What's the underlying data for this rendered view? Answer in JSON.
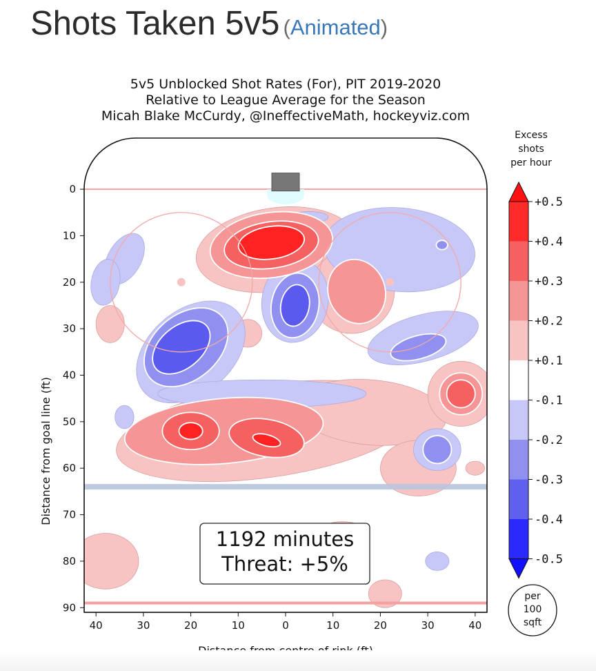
{
  "page": {
    "heading": "Shots Taken 5v5",
    "link_text": "Animated"
  },
  "chart_data": {
    "type": "heatmap",
    "title_lines": [
      "5v5 Unblocked Shot Rates (For), PIT 2019-2020",
      "Relative to League Average for the Season",
      "Micah Blake McCurdy, @IneffectiveMath, hockeyviz.com"
    ],
    "xlabel": "Distance from centre of rink (ft)",
    "ylabel": "Distance from goal line (ft)",
    "xlim": [
      -42.5,
      42.5
    ],
    "ylim": [
      -11,
      91
    ],
    "x_ticks": [
      -40,
      -30,
      -20,
      -10,
      0,
      10,
      20,
      30,
      40
    ],
    "x_tick_labels": [
      "40",
      "30",
      "20",
      "10",
      "0",
      "10",
      "20",
      "30",
      "40"
    ],
    "y_ticks": [
      0,
      10,
      20,
      30,
      40,
      50,
      60,
      70,
      80,
      90
    ],
    "y_tick_labels": [
      "0",
      "10",
      "20",
      "30",
      "40",
      "50",
      "60",
      "70",
      "80",
      "90"
    ],
    "colorbar": {
      "title_lines": [
        "Excess",
        "shots",
        "per hour"
      ],
      "bands": [
        {
          "label": "",
          "color": "#ff1111"
        },
        {
          "label": "+0.5",
          "color": "#ff2b2b"
        },
        {
          "label": "+0.4",
          "color": "#f56060"
        },
        {
          "label": "+0.3",
          "color": "#f59595"
        },
        {
          "label": "+0.2",
          "color": "#f8c3c3"
        },
        {
          "label": "+0.1",
          "color": "#ffffff"
        },
        {
          "label": "-0.1",
          "color": "#c8c8f8"
        },
        {
          "label": "-0.2",
          "color": "#9090f0"
        },
        {
          "label": "-0.3",
          "color": "#6060ee"
        },
        {
          "label": "-0.4",
          "color": "#2a2aff"
        },
        {
          "label": "-0.5",
          "color": "#1010ff"
        }
      ]
    },
    "annotation_lines": [
      "1192 minutes",
      "Threat: +5%"
    ],
    "unit_badge_lines": [
      "per",
      "100",
      "sqft"
    ],
    "regions": [
      {
        "level": 1,
        "cx": -2,
        "cy": 13,
        "rx": 17,
        "ry": 9,
        "rot": -8
      },
      {
        "level": 2,
        "cx": -3,
        "cy": 12,
        "rx": 13,
        "ry": 7,
        "rot": -8
      },
      {
        "level": 3,
        "cx": -3,
        "cy": 12,
        "rx": 10,
        "ry": 5,
        "rot": -8
      },
      {
        "level": 4,
        "cx": -3,
        "cy": 11.5,
        "rx": 7,
        "ry": 3.5,
        "rot": -8
      },
      {
        "level": 1,
        "cx": 14,
        "cy": 22,
        "rx": 9,
        "ry": 9,
        "rot": -20
      },
      {
        "level": 2,
        "cx": 15,
        "cy": 22,
        "rx": 6,
        "ry": 7,
        "rot": -20
      },
      {
        "level": 1,
        "cx": -4,
        "cy": 52,
        "rx": 32,
        "ry": 10,
        "rot": -8
      },
      {
        "level": 1,
        "cx": 18,
        "cy": 48,
        "rx": 16,
        "ry": 7,
        "rot": 5
      },
      {
        "level": 1,
        "cx": 28,
        "cy": 60,
        "rx": 8,
        "ry": 6,
        "rot": 0
      },
      {
        "level": 2,
        "cx": -13,
        "cy": 52,
        "rx": 21,
        "ry": 7,
        "rot": -5
      },
      {
        "level": 3,
        "cx": -20,
        "cy": 52,
        "rx": 6,
        "ry": 4,
        "rot": 0
      },
      {
        "level": 4,
        "cx": -20,
        "cy": 52,
        "rx": 2.5,
        "ry": 1.8,
        "rot": 0
      },
      {
        "level": 3,
        "cx": -4,
        "cy": 53.5,
        "rx": 8,
        "ry": 4,
        "rot": 10
      },
      {
        "level": 4,
        "cx": -4,
        "cy": 54,
        "rx": 3,
        "ry": 1.2,
        "rot": 15
      },
      {
        "level": 1,
        "cx": 37,
        "cy": 44,
        "rx": 7,
        "ry": 7,
        "rot": 0
      },
      {
        "level": 2,
        "cx": 37,
        "cy": 44,
        "rx": 4.5,
        "ry": 4.5,
        "rot": 0
      },
      {
        "level": 3,
        "cx": 37,
        "cy": 44,
        "rx": 3,
        "ry": 3,
        "rot": 0
      },
      {
        "level": 1,
        "cx": -38,
        "cy": 80,
        "rx": 7,
        "ry": 6,
        "rot": 0
      },
      {
        "level": 1,
        "cx": 21,
        "cy": 87,
        "rx": 3.5,
        "ry": 3,
        "rot": 0
      },
      {
        "level": 1,
        "cx": -37,
        "cy": 29,
        "rx": 3,
        "ry": 4,
        "rot": 0
      },
      {
        "level": 1,
        "cx": -8,
        "cy": 31,
        "rx": 3,
        "ry": 3,
        "rot": 0
      },
      {
        "level": 1,
        "cx": 40,
        "cy": 60,
        "rx": 2,
        "ry": 1.5,
        "rot": 0
      },
      {
        "level": 1,
        "cx": 12,
        "cy": 73,
        "rx": 4,
        "ry": 1.5,
        "rot": 0
      },
      {
        "level": -1,
        "cx": -20,
        "cy": 35,
        "rx": 13,
        "ry": 9,
        "rot": -40
      },
      {
        "level": -2,
        "cx": -21,
        "cy": 34,
        "rx": 10,
        "ry": 7,
        "rot": -40
      },
      {
        "level": -3,
        "cx": -22,
        "cy": 34,
        "rx": 7,
        "ry": 4.5,
        "rot": -40
      },
      {
        "level": -1,
        "cx": 2,
        "cy": 24,
        "rx": 7,
        "ry": 9,
        "rot": 10
      },
      {
        "level": -2,
        "cx": 2,
        "cy": 25,
        "rx": 5,
        "ry": 7,
        "rot": 10
      },
      {
        "level": -3,
        "cx": 2,
        "cy": 25,
        "rx": 3,
        "ry": 4.5,
        "rot": 10
      },
      {
        "level": -1,
        "cx": 24,
        "cy": 13,
        "rx": 16,
        "ry": 9,
        "rot": 5
      },
      {
        "level": -2,
        "cx": 33,
        "cy": 12,
        "rx": 1.2,
        "ry": 1,
        "rot": 0
      },
      {
        "level": -1,
        "cx": 29,
        "cy": 32,
        "rx": 12,
        "ry": 5,
        "rot": -15
      },
      {
        "level": -2,
        "cx": 28,
        "cy": 34,
        "rx": 6,
        "ry": 2.5,
        "rot": -15
      },
      {
        "level": -1,
        "cx": -34,
        "cy": 15,
        "rx": 3.5,
        "ry": 6,
        "rot": 30
      },
      {
        "level": -1,
        "cx": -38,
        "cy": 20,
        "rx": 3,
        "ry": 5,
        "rot": 10
      },
      {
        "level": -1,
        "cx": 5,
        "cy": 6,
        "rx": 4,
        "ry": 1.2,
        "rot": 0
      },
      {
        "level": -1,
        "cx": 32,
        "cy": 56,
        "rx": 5,
        "ry": 4.5,
        "rot": 0
      },
      {
        "level": -2,
        "cx": 32,
        "cy": 56,
        "rx": 3,
        "ry": 3,
        "rot": 0
      },
      {
        "level": -1,
        "cx": -34,
        "cy": 49,
        "rx": 2,
        "ry": 2.5,
        "rot": 0
      },
      {
        "level": -1,
        "cx": 32,
        "cy": 80,
        "rx": 2.5,
        "ry": 2,
        "rot": 0
      },
      {
        "level": -1,
        "cx": -5,
        "cy": 44,
        "rx": 22,
        "ry": 3,
        "rot": 0
      }
    ],
    "rink": {
      "goal_line_y": 0,
      "blue_line_y": 64,
      "red_line_y": 89,
      "faceoff_circles": [
        {
          "x": -22,
          "y": 20,
          "r": 15
        },
        {
          "x": 22,
          "y": 20,
          "r": 15
        }
      ],
      "faceoff_dots": [
        {
          "x": -22,
          "y": 20
        },
        {
          "x": 22,
          "y": 20
        }
      ],
      "net": {
        "x": 0,
        "y": -2
      },
      "crease": {
        "x": 0,
        "y": 2
      }
    }
  }
}
